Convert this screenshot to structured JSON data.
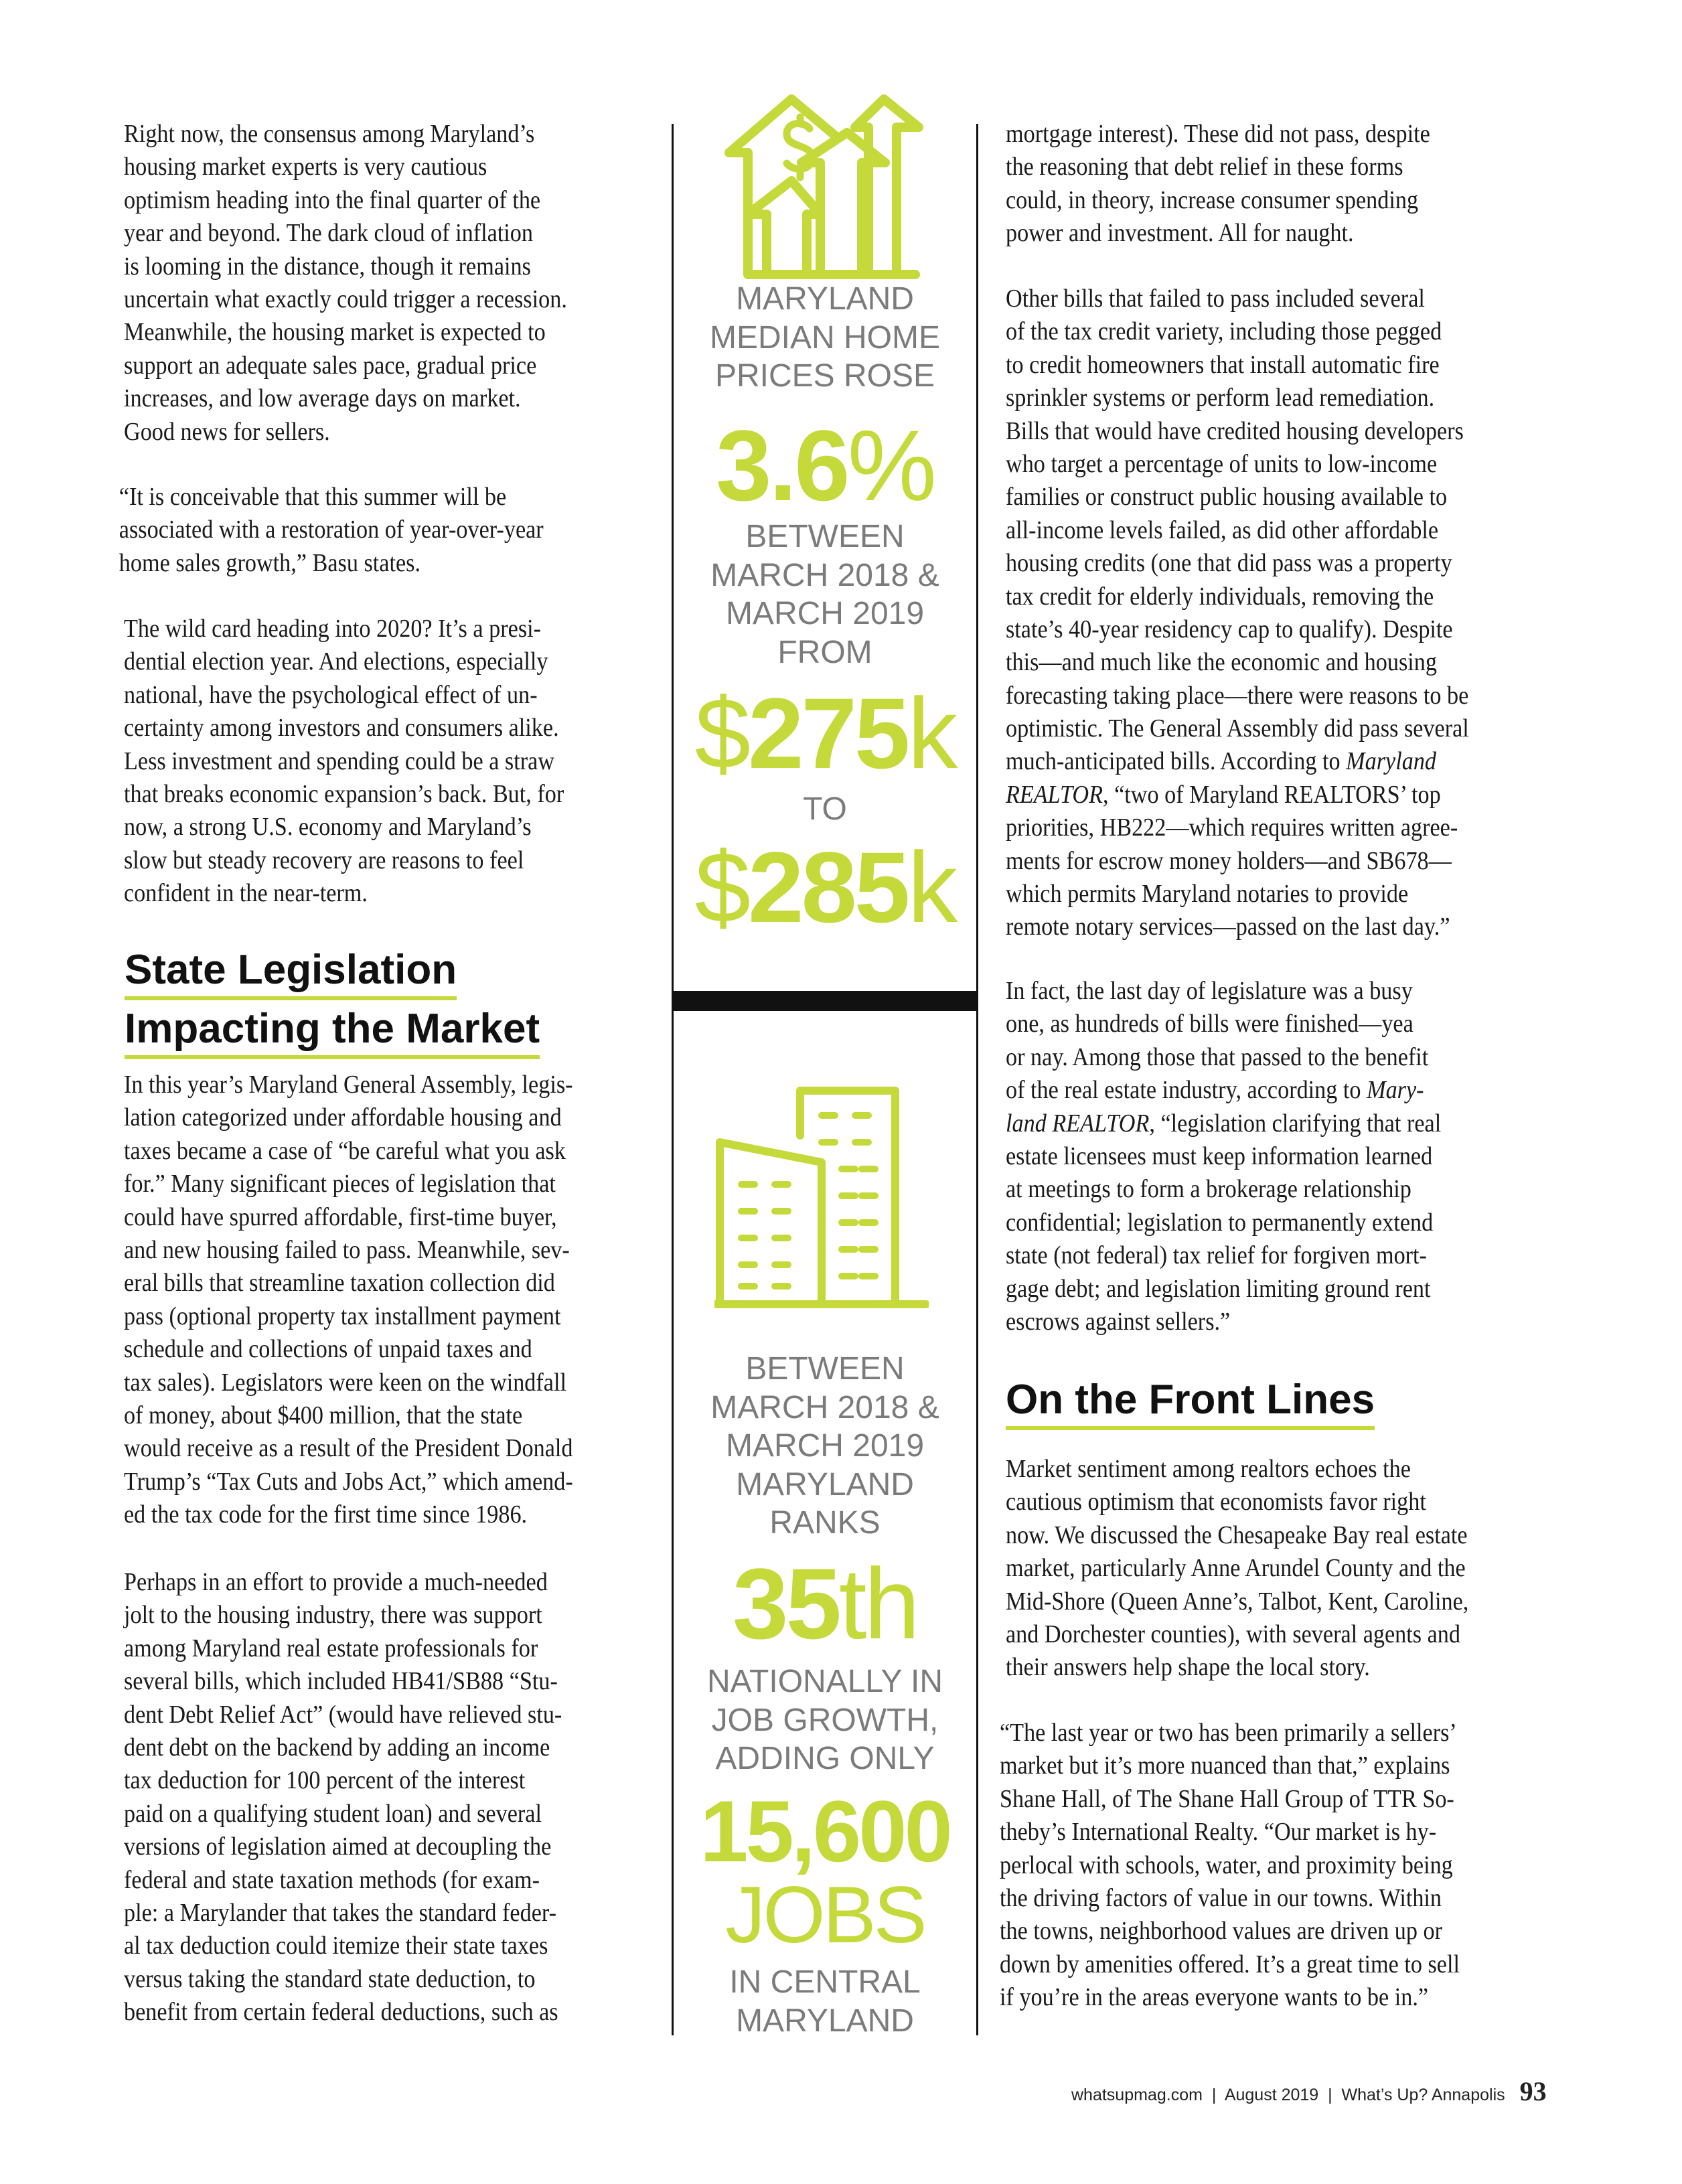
{
  "left_column": {
    "paragraphs": [
      [
        "Right now, the consensus among Maryland’s",
        "housing market experts is very cautious",
        "optimism heading into the final quarter of the",
        "year and beyond. The dark cloud of inflation",
        "is looming in the distance, though it remains",
        "uncertain what exactly could trigger a recession.",
        "Meanwhile, the housing market is expected to",
        "support an adequate sales pace, gradual price",
        "increases, and low average days on market.",
        "Good news for sellers."
      ],
      [
        "“It is conceivable that this summer will be",
        "associated with a restoration of year-over-year",
        "home sales growth,” Basu states."
      ],
      [
        "The wild card heading into 2020? It’s a presi-",
        "dential election year. And elections, especially",
        "national, have the psychological effect of un-",
        "certainty among investors and consumers alike.",
        "Less investment and spending could be a straw",
        "that breaks economic expansion’s back. But, for",
        "now, a strong U.S. economy and Maryland’s",
        "slow but steady recovery are reasons to feel",
        "confident in the near-term."
      ],
      [
        "In this year’s Maryland General Assembly, legis-",
        "lation categorized under affordable housing and",
        "taxes became a case of “be careful what you ask",
        "for.” Many significant pieces of legislation that",
        "could have spurred affordable, first-time buyer,",
        "and new housing failed to pass. Meanwhile, sev-",
        "eral bills that streamline taxation collection did",
        "pass (optional property tax installment payment",
        "schedule and collections of unpaid taxes and",
        "tax sales). Legislators were keen on the windfall",
        "of money, about $400 million, that the state",
        "would receive as a result of the President Donald",
        "Trump’s “Tax Cuts and Jobs Act,” which amend-",
        "ed the tax code for the first time since 1986."
      ],
      [
        "Perhaps in an effort to provide a much-needed",
        "jolt to the housing industry, there was support",
        "among Maryland real estate professionals for",
        "several bills, which included HB41/SB88 “Stu-",
        "dent Debt Relief Act” (would have relieved stu-",
        "dent debt on the backend by adding an income",
        "tax deduction for 100 percent of the interest",
        "paid on a qualifying student loan) and several",
        "versions of legislation aimed at decoupling the",
        "federal and state taxation methods (for exam-",
        "ple: a Marylander that takes the standard feder-",
        "al tax deduction could itemize their state taxes",
        "versus taking the standard state deduction, to",
        "benefit from certain federal deductions, such as"
      ]
    ],
    "heading_lines": [
      "State Legislation",
      "Impacting the Market"
    ]
  },
  "right_column": {
    "paragraphs": [
      [
        "mortgage interest). These did not pass, despite",
        "the reasoning that debt relief in these forms",
        "could, in theory, increase consumer spending",
        "power and investment. All for naught."
      ],
      [
        "Other bills that failed to pass included several",
        "of the tax credit variety, including those pegged",
        "to credit homeowners that install automatic fire",
        "sprinkler systems or perform lead remediation.",
        "Bills that would have credited housing developers",
        "who target a percentage of units to low-income",
        "families or construct public housing available to",
        "all-income levels failed, as did other affordable",
        "housing credits (one that did pass was a property",
        "tax credit for elderly individuals, removing the",
        "state’s 40-year residency cap to qualify). Despite",
        "this—and much like the economic and housing",
        "forecasting taking place—there were reasons to be",
        "optimistic. The General Assembly did pass several",
        [
          [
            "much-anticipated bills. According to ",
            false
          ],
          [
            "Maryland",
            true
          ]
        ],
        [
          [
            "REALTOR",
            true
          ],
          [
            ", “two of Maryland REALTORS’ top",
            false
          ]
        ],
        "priorities, HB222—which requires written agree-",
        "ments for escrow money holders—and SB678—",
        "which permits Maryland notaries to provide",
        "remote notary services—passed on the last day.”"
      ],
      [
        "In fact, the last day of legislature was a busy",
        "one, as hundreds of bills were finished—yea",
        "or nay. Among those that passed to the benefit",
        [
          [
            "of the real estate industry, according to ",
            false
          ],
          [
            "Mary-",
            true
          ]
        ],
        [
          [
            "land REALTOR",
            true
          ],
          [
            ", “legislation clarifying that real",
            false
          ]
        ],
        "estate licensees must keep information learned",
        "at meetings to form a brokerage relationship",
        "confidential; legislation to permanently extend",
        "state (not federal) tax relief for forgiven mort-",
        "gage debt; and legislation limiting ground rent",
        "escrows against sellers.”"
      ],
      [
        "Market sentiment among realtors echoes the",
        "cautious optimism that economists favor right",
        "now. We discussed the Chesapeake Bay real estate",
        "market, particularly Anne Arundel County and the",
        "Mid-Shore (Queen Anne’s, Talbot, Kent, Caroline,",
        "and Dorchester counties), with several agents and",
        "their answers help shape the local story."
      ],
      [
        "“The last year or two has been primarily a sellers’",
        "market but it’s more nuanced than that,” explains",
        "Shane Hall, of The Shane Hall Group of TTR So-",
        "theby’s International Realty. “Our market is hy-",
        "perlocal with schools, water, and proximity being",
        "the driving factors of value in our towns. Within",
        "the towns, neighborhood values are driven up or",
        "down by amenities offered. It’s a great time to sell",
        "if you’re in the areas everyone wants to be in.”"
      ]
    ],
    "heading_lines": [
      "On the Front Lines"
    ]
  },
  "sidebar": {
    "stat1": {
      "icon": "house-rising-arrows-icon",
      "intro": [
        "MARYLAND",
        "MEDIAN HOME",
        "PRICES ROSE"
      ],
      "percent_number": "3.6",
      "percent_sign": "%",
      "between": [
        "BETWEEN",
        "MARCH 2018 &",
        "MARCH 2019",
        "FROM"
      ],
      "from_currency": "$",
      "from_value": "275",
      "from_unit": "k",
      "to_label": "TO",
      "to_currency": "$",
      "to_value": "285",
      "to_unit": "k"
    },
    "stat2": {
      "icon": "office-buildings-icon",
      "intro": [
        "BETWEEN",
        "MARCH 2018 &",
        "MARCH 2019",
        "MARYLAND",
        "RANKS"
      ],
      "rank_number": "35",
      "rank_suffix": "th",
      "middle": [
        "NATIONALLY IN",
        "JOB GROWTH,",
        "ADDING ONLY"
      ],
      "jobs_number": "15,600",
      "jobs_label": "JOBS",
      "outro": [
        "IN CENTRAL",
        "MARYLAND"
      ]
    }
  },
  "footer": {
    "text": "whatsupmag.com  |  August 2019  |  What’s Up? Annapolis",
    "page_number": "93"
  },
  "colors": {
    "accent": "#c5d93a",
    "gray_text": "#7b7b7b",
    "body_text": "#1a1a1a"
  }
}
